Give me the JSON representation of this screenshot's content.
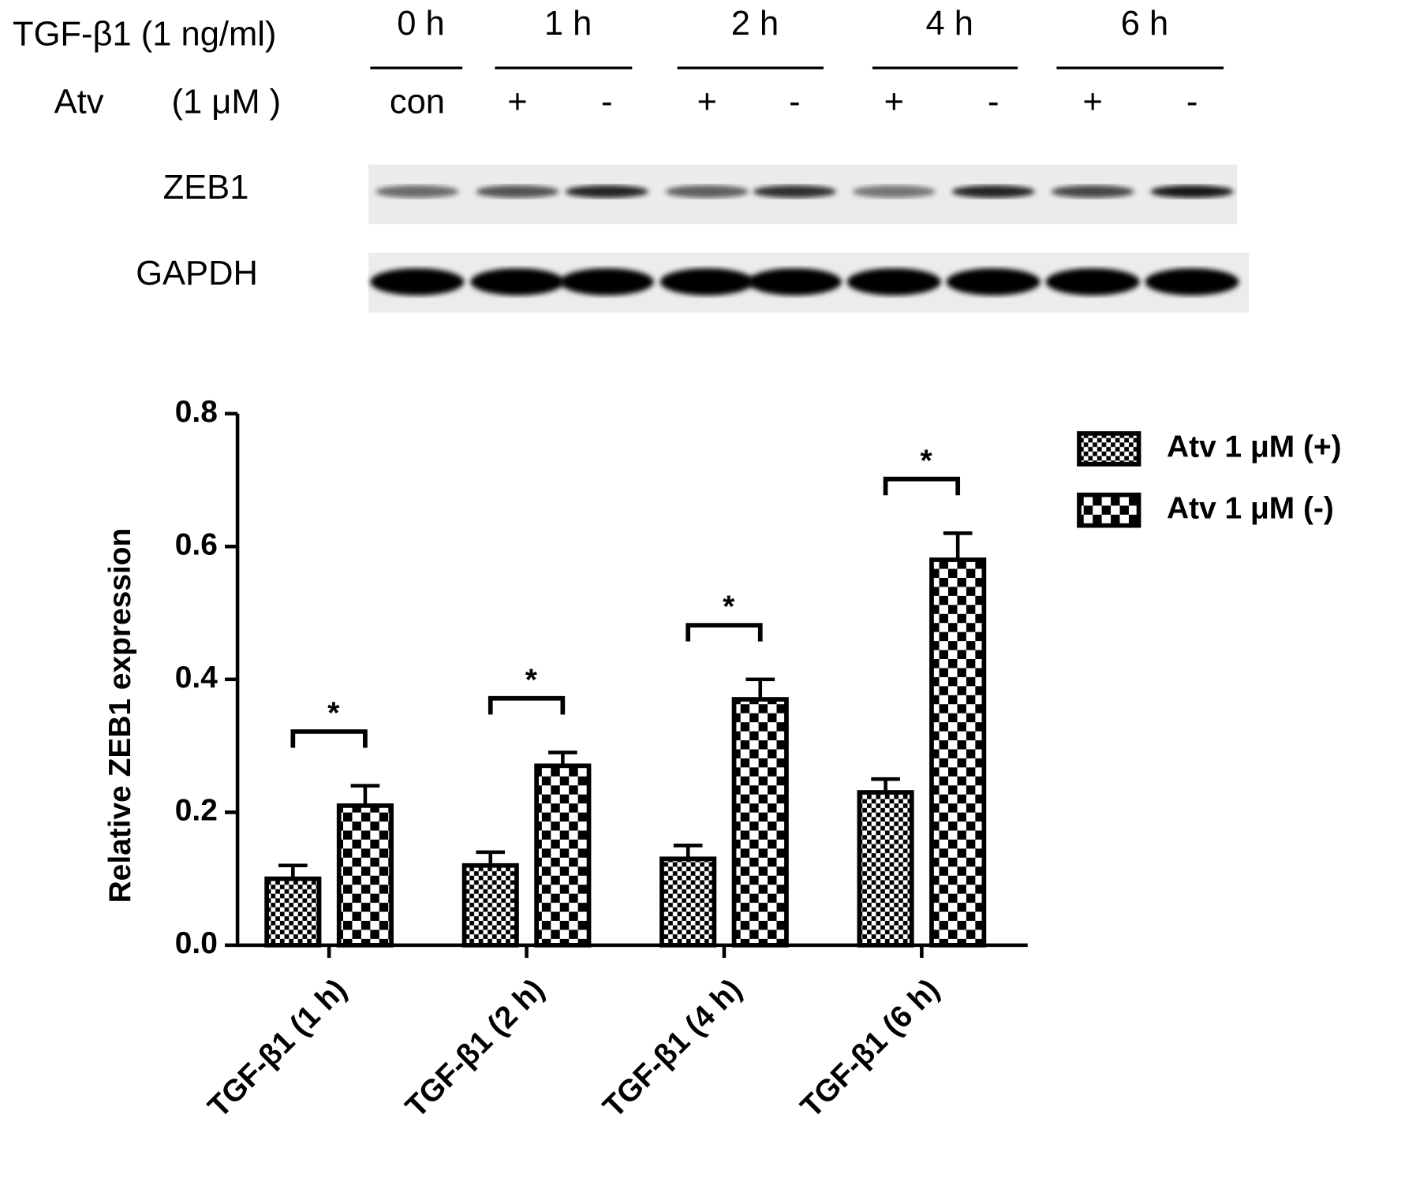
{
  "blot": {
    "treatment": "TGF-β1  (1 ng/ml)",
    "agent_label": "Atv",
    "agent_dose": "(1 μM )",
    "times": [
      "0 h",
      "1 h",
      "2 h",
      "4 h",
      "6 h"
    ],
    "lanes": [
      "con",
      "+",
      "-",
      "+",
      "-",
      "+",
      "-",
      "+",
      "-"
    ],
    "proteins": [
      "ZEB1",
      "GAPDH"
    ]
  },
  "chart_data": {
    "type": "bar",
    "ylabel": "Relative ZEB1 expression",
    "categories": [
      "TGF-β1 (1 h)",
      "TGF-β1 (2 h)",
      "TGF-β1 (4 h)",
      "TGF-β1 (6 h)"
    ],
    "series": [
      {
        "name": "Atv 1 μM (+)",
        "color": "#000000",
        "values": [
          0.1,
          0.12,
          0.13,
          0.23
        ],
        "errors": [
          0.02,
          0.02,
          0.02,
          0.02
        ]
      },
      {
        "name": "Atv 1 μM (-)",
        "color": "#000000",
        "values": [
          0.21,
          0.27,
          0.37,
          0.58
        ],
        "errors": [
          0.03,
          0.02,
          0.03,
          0.04
        ]
      }
    ],
    "annotations": [
      "*",
      "*",
      "*",
      "*"
    ],
    "ylim": [
      0,
      0.8
    ],
    "yticks": [
      {
        "value": 0,
        "label": "0.0"
      },
      0.2,
      0.4,
      0.6,
      0.8
    ],
    "legend": "upper right"
  }
}
